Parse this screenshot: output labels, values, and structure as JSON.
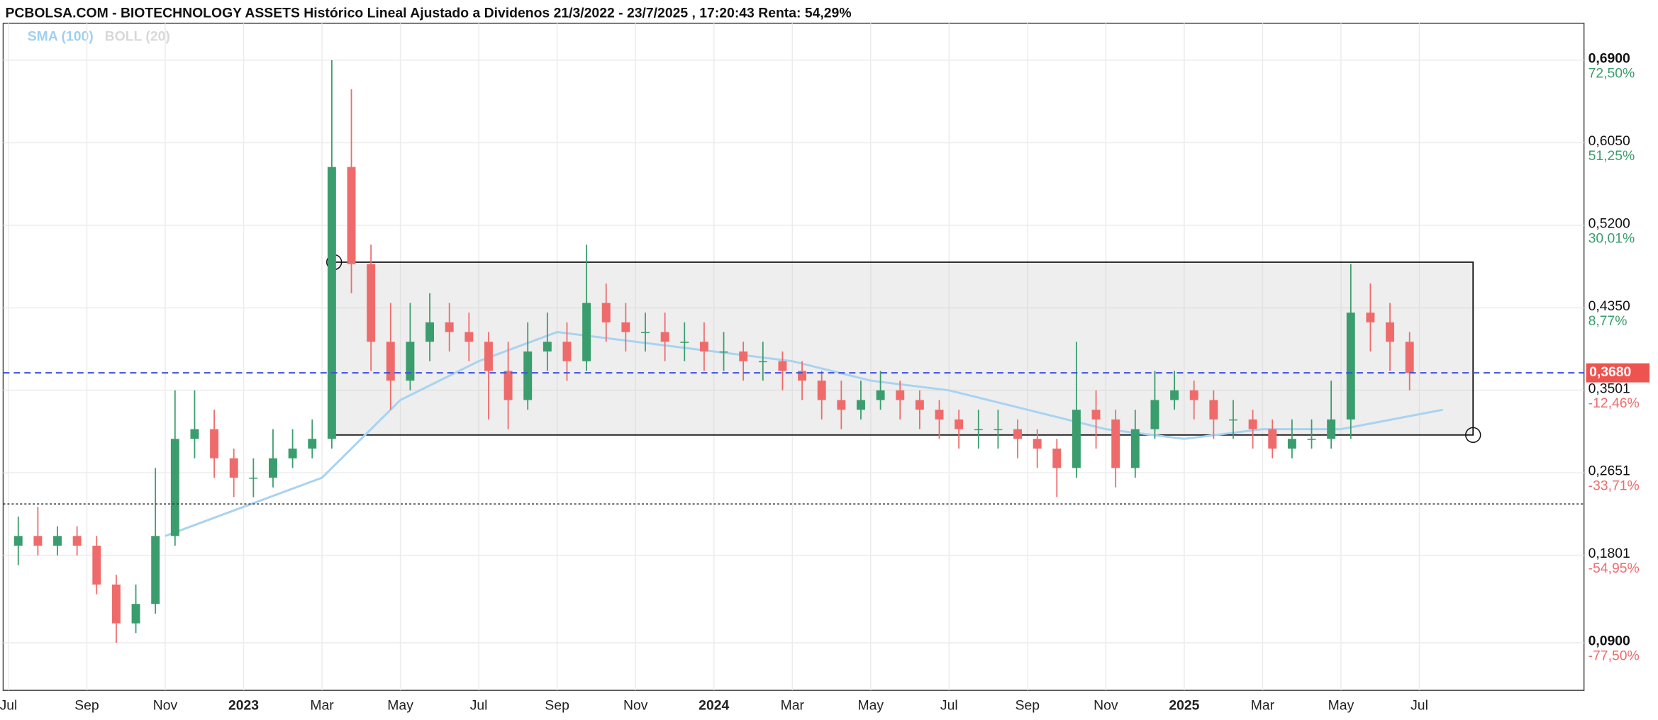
{
  "chart_data": {
    "type": "candlestick",
    "title": "PCBOLSA.COM - BIOTECHNOLOGY ASSETS Histórico Lineal Ajustado a Dividenos 21/3/2022 - 23/7/2025 , 17:20:43 Renta: 54,29%",
    "legend": [
      "SMA (100)",
      "BOLL (20)"
    ],
    "up_color": "#3a9d6d",
    "down_color": "#ef6b6b",
    "grid": true,
    "xlim": [
      -0.135,
      40.2
    ],
    "xticks": [
      {
        "value": 0,
        "label": "Jul"
      },
      {
        "value": 2,
        "label": "Sep"
      },
      {
        "value": 4,
        "label": "Nov"
      },
      {
        "value": 6,
        "label": "2023"
      },
      {
        "value": 8,
        "label": "Mar"
      },
      {
        "value": 10,
        "label": "May"
      },
      {
        "value": 12,
        "label": "Jul"
      },
      {
        "value": 14,
        "label": "Sep"
      },
      {
        "value": 16,
        "label": "Nov"
      },
      {
        "value": 18,
        "label": "2024"
      },
      {
        "value": 20,
        "label": "Mar"
      },
      {
        "value": 22,
        "label": "May"
      },
      {
        "value": 24,
        "label": "Jul"
      },
      {
        "value": 26,
        "label": "Sep"
      },
      {
        "value": 28,
        "label": "Nov"
      },
      {
        "value": 30,
        "label": "2025"
      },
      {
        "value": 32,
        "label": "Mar"
      },
      {
        "value": 34,
        "label": "May"
      },
      {
        "value": 36,
        "label": "Jul"
      }
    ],
    "ylim": [
      0.041,
      0.728
    ],
    "yticks": [
      {
        "value": 0.69,
        "label": "0,6900"
      },
      {
        "value": 0.605,
        "label": "0,6050"
      },
      {
        "value": 0.52,
        "label": "0,5200"
      },
      {
        "value": 0.435,
        "label": "0,4350"
      },
      {
        "value": 0.3501,
        "label": "0,3501"
      },
      {
        "value": 0.2651,
        "label": "0,2651"
      },
      {
        "value": 0.1801,
        "label": "0,1801"
      },
      {
        "value": 0.09,
        "label": "0,0900"
      }
    ],
    "ytick_percent_labels": [
      "72,50%",
      "51,25%",
      "30,01%",
      "8,77%",
      "-12,46%",
      "-33,71%",
      "-54,95%",
      "-77,50%"
    ],
    "last_price": {
      "value": 0.368,
      "label": "0,3680",
      "color": "#ef5350"
    },
    "reference_line": 0.233,
    "box": {
      "x": [
        8.31,
        37.37
      ],
      "y": [
        0.304,
        0.482
      ]
    },
    "candles": {
      "x": [
        0.25,
        0.75,
        1.25,
        1.75,
        2.25,
        2.75,
        3.25,
        3.75,
        4.25,
        4.75,
        5.25,
        5.75,
        6.25,
        6.75,
        7.25,
        7.75,
        8.25,
        8.75,
        9.25,
        9.75,
        10.25,
        10.75,
        11.25,
        11.75,
        12.25,
        12.75,
        13.25,
        13.75,
        14.25,
        14.75,
        15.25,
        15.75,
        16.25,
        16.75,
        17.25,
        17.75,
        18.25,
        18.75,
        19.25,
        19.75,
        20.25,
        20.75,
        21.25,
        21.75,
        22.25,
        22.75,
        23.25,
        23.75,
        24.25,
        24.75,
        25.25,
        25.75,
        26.25,
        26.75,
        27.25,
        27.75,
        28.25,
        28.75,
        29.25,
        29.75,
        30.25,
        30.75,
        31.25,
        31.75,
        32.25,
        32.75,
        33.25,
        33.75,
        34.25,
        34.75,
        35.25,
        35.75
      ],
      "open": [
        0.19,
        0.2,
        0.19,
        0.2,
        0.19,
        0.15,
        0.11,
        0.13,
        0.2,
        0.3,
        0.31,
        0.28,
        0.26,
        0.26,
        0.28,
        0.29,
        0.3,
        0.58,
        0.48,
        0.4,
        0.36,
        0.4,
        0.42,
        0.41,
        0.4,
        0.37,
        0.34,
        0.39,
        0.4,
        0.38,
        0.44,
        0.42,
        0.41,
        0.41,
        0.4,
        0.4,
        0.39,
        0.39,
        0.38,
        0.38,
        0.37,
        0.36,
        0.34,
        0.33,
        0.34,
        0.35,
        0.34,
        0.33,
        0.32,
        0.31,
        0.31,
        0.31,
        0.3,
        0.29,
        0.27,
        0.33,
        0.32,
        0.27,
        0.31,
        0.34,
        0.35,
        0.34,
        0.32,
        0.32,
        0.31,
        0.29,
        0.3,
        0.3,
        0.32,
        0.43,
        0.42,
        0.4
      ],
      "high": [
        0.22,
        0.23,
        0.21,
        0.21,
        0.2,
        0.16,
        0.15,
        0.27,
        0.35,
        0.35,
        0.33,
        0.29,
        0.28,
        0.31,
        0.31,
        0.32,
        0.69,
        0.66,
        0.5,
        0.44,
        0.44,
        0.45,
        0.44,
        0.43,
        0.41,
        0.4,
        0.42,
        0.43,
        0.42,
        0.5,
        0.46,
        0.44,
        0.43,
        0.43,
        0.42,
        0.42,
        0.41,
        0.4,
        0.4,
        0.39,
        0.38,
        0.37,
        0.36,
        0.36,
        0.37,
        0.36,
        0.35,
        0.34,
        0.33,
        0.33,
        0.33,
        0.32,
        0.31,
        0.3,
        0.4,
        0.35,
        0.33,
        0.33,
        0.37,
        0.37,
        0.36,
        0.35,
        0.34,
        0.33,
        0.32,
        0.32,
        0.32,
        0.36,
        0.48,
        0.46,
        0.44,
        0.41
      ],
      "low": [
        0.17,
        0.18,
        0.18,
        0.18,
        0.14,
        0.09,
        0.1,
        0.12,
        0.19,
        0.28,
        0.26,
        0.24,
        0.24,
        0.25,
        0.27,
        0.28,
        0.29,
        0.45,
        0.37,
        0.33,
        0.35,
        0.38,
        0.39,
        0.38,
        0.32,
        0.31,
        0.33,
        0.37,
        0.36,
        0.37,
        0.4,
        0.39,
        0.39,
        0.38,
        0.38,
        0.37,
        0.37,
        0.36,
        0.36,
        0.35,
        0.34,
        0.32,
        0.31,
        0.32,
        0.33,
        0.32,
        0.31,
        0.3,
        0.29,
        0.29,
        0.29,
        0.28,
        0.27,
        0.24,
        0.26,
        0.29,
        0.25,
        0.26,
        0.3,
        0.33,
        0.32,
        0.3,
        0.3,
        0.29,
        0.28,
        0.28,
        0.29,
        0.29,
        0.3,
        0.39,
        0.37,
        0.35
      ],
      "close": [
        0.2,
        0.19,
        0.2,
        0.19,
        0.15,
        0.11,
        0.13,
        0.2,
        0.3,
        0.31,
        0.28,
        0.26,
        0.26,
        0.28,
        0.29,
        0.3,
        0.58,
        0.48,
        0.4,
        0.36,
        0.4,
        0.42,
        0.41,
        0.4,
        0.37,
        0.34,
        0.39,
        0.4,
        0.38,
        0.44,
        0.42,
        0.41,
        0.41,
        0.4,
        0.4,
        0.39,
        0.39,
        0.38,
        0.38,
        0.37,
        0.36,
        0.34,
        0.33,
        0.34,
        0.35,
        0.34,
        0.33,
        0.32,
        0.31,
        0.31,
        0.31,
        0.3,
        0.29,
        0.27,
        0.33,
        0.32,
        0.27,
        0.31,
        0.34,
        0.35,
        0.34,
        0.32,
        0.32,
        0.31,
        0.29,
        0.3,
        0.3,
        0.32,
        0.43,
        0.42,
        0.4,
        0.368
      ]
    },
    "sma": {
      "name": "SMA (100)",
      "color": "#a9d3f0",
      "x": [
        4,
        6,
        8,
        10,
        12,
        14,
        16,
        18,
        20,
        22,
        24,
        26,
        28,
        30,
        32,
        34,
        36.6
      ],
      "values": [
        0.2,
        0.23,
        0.26,
        0.34,
        0.38,
        0.41,
        0.4,
        0.39,
        0.38,
        0.36,
        0.35,
        0.33,
        0.31,
        0.3,
        0.31,
        0.31,
        0.33
      ]
    }
  }
}
